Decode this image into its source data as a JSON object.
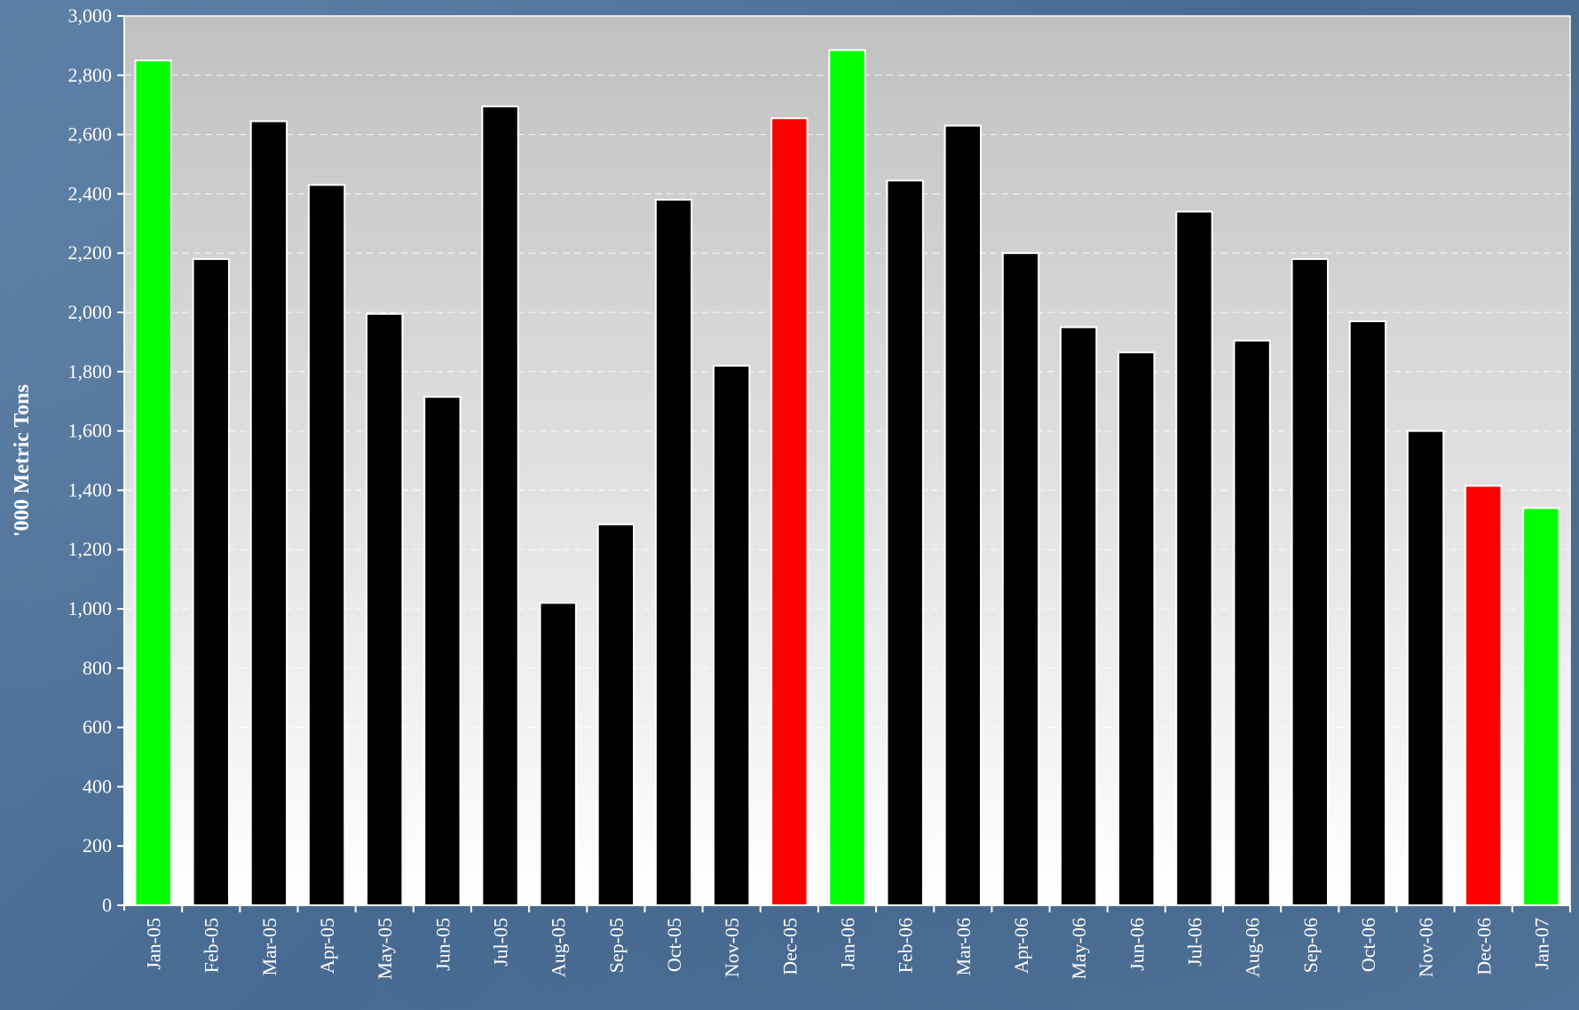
{
  "chart_data": {
    "type": "bar",
    "ylabel": "'000 Metric Tons",
    "ylim": [
      0,
      3000
    ],
    "yticks": [
      0,
      200,
      400,
      600,
      800,
      1000,
      1200,
      1400,
      1600,
      1800,
      2000,
      2200,
      2400,
      2600,
      2800,
      3000
    ],
    "ytick_labels": [
      "0",
      "200",
      "400",
      "600",
      "800",
      "1,000",
      "1,200",
      "1,400",
      "1,600",
      "1,800",
      "2,000",
      "2,200",
      "2,400",
      "2,600",
      "2,800",
      "3,000"
    ],
    "grid": true,
    "categories": [
      "Jan-05",
      "Feb-05",
      "Mar-05",
      "Apr-05",
      "May-05",
      "Jun-05",
      "Jul-05",
      "Aug-05",
      "Sep-05",
      "Oct-05",
      "Nov-05",
      "Dec-05",
      "Jan-06",
      "Feb-06",
      "Mar-06",
      "Apr-06",
      "May-06",
      "Jun-06",
      "Jul-06",
      "Aug-06",
      "Sep-06",
      "Oct-06",
      "Nov-06",
      "Dec-06",
      "Jan-07"
    ],
    "values": [
      2850,
      2180,
      2645,
      2430,
      1995,
      1715,
      2695,
      1020,
      1285,
      2380,
      1820,
      2655,
      2885,
      2445,
      2630,
      2200,
      1950,
      1865,
      2340,
      1905,
      2180,
      1970,
      1600,
      1415,
      1340
    ],
    "bar_colors": [
      "#00ff00",
      "#000000",
      "#000000",
      "#000000",
      "#000000",
      "#000000",
      "#000000",
      "#000000",
      "#000000",
      "#000000",
      "#000000",
      "#ff0000",
      "#00ff00",
      "#000000",
      "#000000",
      "#000000",
      "#000000",
      "#000000",
      "#000000",
      "#000000",
      "#000000",
      "#000000",
      "#000000",
      "#ff0000",
      "#00ff00"
    ],
    "bar_outline_color": "#ffffff"
  }
}
